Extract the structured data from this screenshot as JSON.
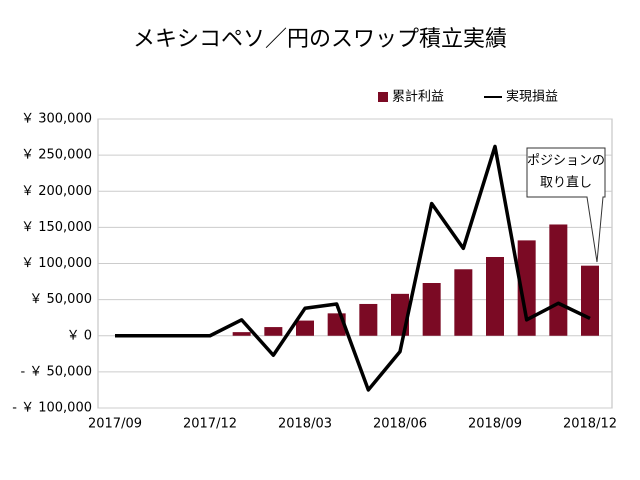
{
  "chart_data": {
    "type": "bar_line",
    "title": "メキシコペソ／円のスワップ積立実績",
    "categories": [
      "2017/09",
      null,
      null,
      "2017/12",
      null,
      null,
      "2018/03",
      null,
      null,
      "2018/06",
      null,
      null,
      "2018/09",
      null,
      null,
      "2018/12"
    ],
    "series": [
      {
        "name": "累計利益",
        "type": "bar",
        "color": "#7b0a24",
        "values": [
          0,
          0,
          0,
          0,
          5000,
          12000,
          21000,
          31000,
          44000,
          58000,
          73000,
          92000,
          109000,
          132000,
          154000,
          97000
        ]
      },
      {
        "name": "実現損益",
        "type": "line",
        "color": "#000000",
        "values": [
          0,
          0,
          0,
          0,
          22000,
          -27000,
          38000,
          44000,
          -75000,
          -22000,
          183000,
          121000,
          262000,
          22000,
          45000,
          24000
        ]
      }
    ],
    "ylim": [
      -100000,
      300000
    ],
    "yticks": [
      {
        "value": -100000,
        "label": "- ￥ 100,000"
      },
      {
        "value": -50000,
        "label": "- ￥ 50,000"
      },
      {
        "value": 0,
        "label": "￥ 0"
      },
      {
        "value": 50000,
        "label": "￥ 50,000"
      },
      {
        "value": 100000,
        "label": "￥ 100,000"
      },
      {
        "value": 150000,
        "label": "￥ 150,000"
      },
      {
        "value": 200000,
        "label": "￥ 200,000"
      },
      {
        "value": 250000,
        "label": "￥ 250,000"
      },
      {
        "value": 300000,
        "label": "￥ 300,000"
      }
    ],
    "negative_tick_color": "#cc0000",
    "grid": true,
    "legend": "top-right",
    "annotation": {
      "lines": [
        "ポジションの",
        "取り直し"
      ]
    }
  }
}
